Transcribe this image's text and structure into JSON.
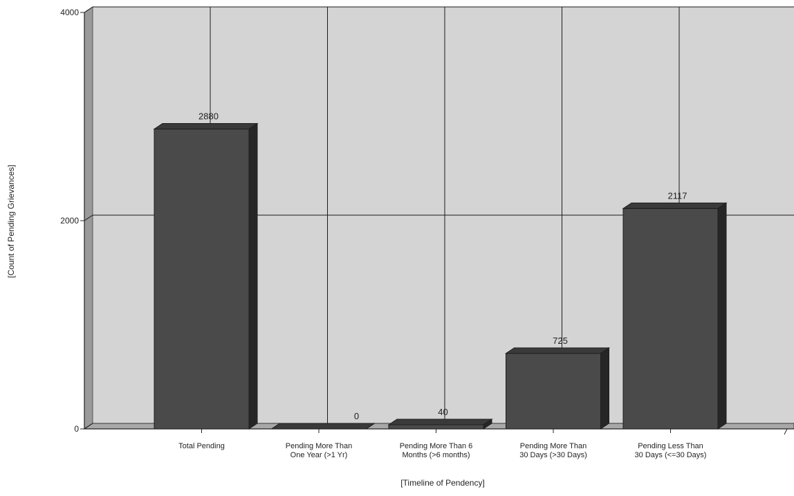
{
  "chart_data": {
    "type": "bar",
    "title": "",
    "xlabel": "[Timeline of Pendency]",
    "ylabel": "[Count of Pending Grievances]",
    "ylim": [
      0,
      4000
    ],
    "yticks": [
      0,
      2000,
      4000
    ],
    "categories": [
      [
        "Total Pending"
      ],
      [
        "Pending More Than",
        "One Year (>1 Yr)"
      ],
      [
        "Pending More Than 6",
        "Months (>6 months)"
      ],
      [
        "Pending More Than",
        "30 Days (>30 Days)"
      ],
      [
        "Pending Less Than",
        "30 Days (<=30 Days)"
      ]
    ],
    "values": [
      2880,
      0,
      40,
      725,
      2117
    ],
    "style": "3d",
    "grid": true,
    "legend": "none",
    "colors": {
      "bar_front": "#4a4a4a",
      "bar_top": "#3a3a3a",
      "bar_side": "#262626",
      "wall": "#d4d4d4",
      "side_wall": "#9a9a9a",
      "floor": "#a8a8a8",
      "grid": "#1a1a1a"
    }
  }
}
